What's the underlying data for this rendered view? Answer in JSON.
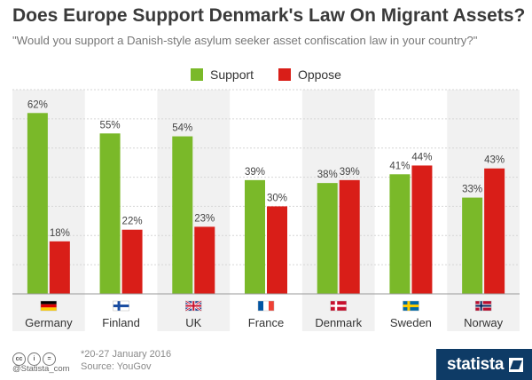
{
  "header": {
    "title": "Does Europe Support Denmark's Law On Migrant Assets?",
    "subtitle": "\"Would you support a Danish-style asylum seeker asset confiscation law in your country?\""
  },
  "colors": {
    "support": "#7ab929",
    "oppose": "#d91e18",
    "band_light": "#f1f1f1",
    "grid": "#d6d6d6"
  },
  "chart_data": {
    "type": "bar",
    "title": "Does Europe Support Denmark's Law On Migrant Assets?",
    "subtitle": "\"Would you support a Danish-style asylum seeker asset confiscation law in your country?\"",
    "categories": [
      "Germany",
      "Finland",
      "UK",
      "France",
      "Denmark",
      "Sweden",
      "Norway"
    ],
    "series": [
      {
        "name": "Support",
        "values": [
          62,
          55,
          54,
          39,
          38,
          41,
          33
        ]
      },
      {
        "name": "Oppose",
        "values": [
          18,
          22,
          23,
          30,
          39,
          44,
          43
        ]
      }
    ],
    "value_suffix": "%",
    "ylim": [
      0,
      70
    ],
    "grid": true,
    "legend": "top-center"
  },
  "flags": [
    "germany-flag",
    "finland-flag",
    "uk-flag",
    "france-flag",
    "denmark-flag",
    "sweden-flag",
    "norway-flag"
  ],
  "footer": {
    "note": "*20-27 January 2016",
    "source": "Source: YouGov",
    "handle": "@Statista_com",
    "cc_badges": [
      "cc",
      "i",
      "="
    ],
    "logo_text": "statista"
  }
}
